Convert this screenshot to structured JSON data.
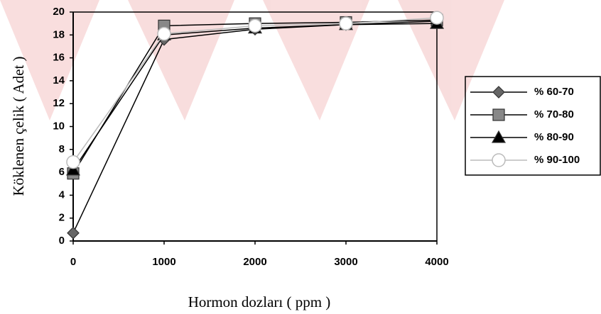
{
  "chart_data": {
    "type": "line",
    "x_label": "Hormon dozları ( ppm )",
    "y_label": "Köklenen çelik ( Adet )",
    "x": [
      0,
      1000,
      2000,
      3000,
      4000
    ],
    "xlim": [
      0,
      4000
    ],
    "xticks": [
      0,
      1000,
      2000,
      3000,
      4000
    ],
    "ylim": [
      0,
      20
    ],
    "yticks": [
      0,
      2,
      4,
      6,
      8,
      10,
      12,
      14,
      16,
      18,
      20
    ],
    "legend": "right",
    "series": [
      {
        "name": "% 60-70",
        "color": "#666666",
        "marker": "diamond",
        "values": [
          0.7,
          17.6,
          18.5,
          18.9,
          19.2
        ]
      },
      {
        "name": "% 70-80",
        "color": "#888888",
        "marker": "square",
        "values": [
          5.9,
          18.8,
          19.0,
          19.1,
          19.3
        ]
      },
      {
        "name": "% 80-90",
        "color": "#000000",
        "marker": "triangle",
        "values": [
          6.2,
          18.0,
          18.6,
          18.9,
          19.0
        ]
      },
      {
        "name": "% 90-100",
        "color": "#bbbbbb",
        "marker": "circle",
        "values": [
          6.9,
          18.1,
          18.8,
          19.0,
          19.5
        ]
      }
    ]
  }
}
